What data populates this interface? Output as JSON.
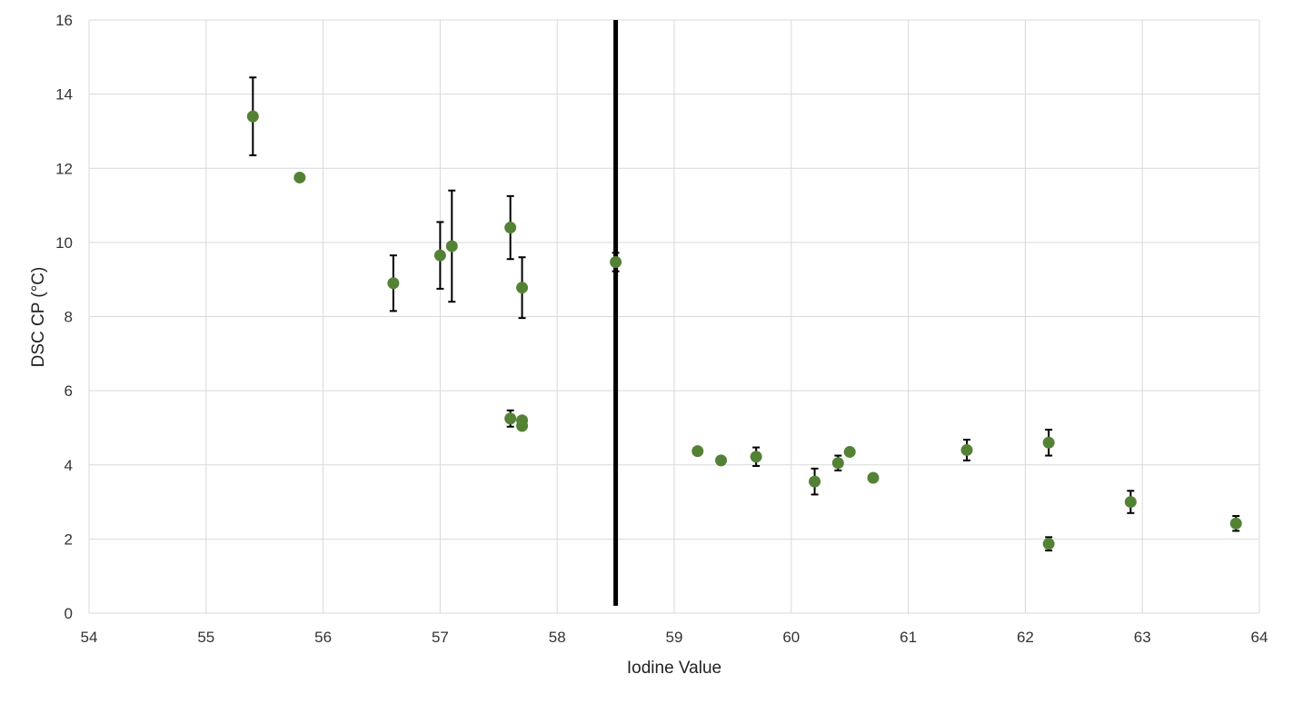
{
  "chart_data": {
    "type": "scatter",
    "title": "",
    "xlabel": "Iodine Value",
    "ylabel": "DSC CP (°C)",
    "xlim": [
      54,
      64
    ],
    "ylim": [
      0,
      16
    ],
    "x_ticks": [
      "54",
      "55",
      "56",
      "57",
      "58",
      "59",
      "60",
      "61",
      "62",
      "63",
      "64"
    ],
    "y_ticks": [
      "0",
      "2",
      "4",
      "6",
      "8",
      "10",
      "12",
      "14",
      "16"
    ],
    "grid": true,
    "legend": "none",
    "vertical_line": {
      "x": 58.5,
      "y_range": [
        0.2,
        16
      ],
      "color": "#000000"
    },
    "marker_color": "#548235",
    "series": [
      {
        "points": [
          {
            "x": 55.4,
            "y": 13.4,
            "err": 1.05
          },
          {
            "x": 55.8,
            "y": 11.75,
            "err": 0
          },
          {
            "x": 56.6,
            "y": 8.9,
            "err": 0.75
          },
          {
            "x": 57.0,
            "y": 9.65,
            "err": 0.9
          },
          {
            "x": 57.1,
            "y": 9.9,
            "err": 1.5
          },
          {
            "x": 57.6,
            "y": 10.4,
            "err": 0.85
          },
          {
            "x": 57.7,
            "y": 8.78,
            "err": 0.82
          },
          {
            "x": 57.6,
            "y": 5.25,
            "err": 0.22
          },
          {
            "x": 57.7,
            "y": 5.2,
            "err": 0
          },
          {
            "x": 57.7,
            "y": 5.05,
            "err": 0
          },
          {
            "x": 58.5,
            "y": 9.47,
            "err": 0.25
          },
          {
            "x": 59.2,
            "y": 4.37,
            "err": 0
          },
          {
            "x": 59.4,
            "y": 4.12,
            "err": 0.1
          },
          {
            "x": 59.7,
            "y": 4.22,
            "err": 0.25
          },
          {
            "x": 60.2,
            "y": 3.55,
            "err": 0.35
          },
          {
            "x": 60.4,
            "y": 4.05,
            "err": 0.2
          },
          {
            "x": 60.5,
            "y": 4.35,
            "err": 0
          },
          {
            "x": 60.7,
            "y": 3.65,
            "err": 0.1
          },
          {
            "x": 61.5,
            "y": 4.4,
            "err": 0.28
          },
          {
            "x": 62.2,
            "y": 4.6,
            "err": 0.35
          },
          {
            "x": 62.2,
            "y": 1.87,
            "err": 0.18
          },
          {
            "x": 62.9,
            "y": 3.0,
            "err": 0.3
          },
          {
            "x": 63.8,
            "y": 2.42,
            "err": 0.2
          }
        ]
      }
    ]
  }
}
